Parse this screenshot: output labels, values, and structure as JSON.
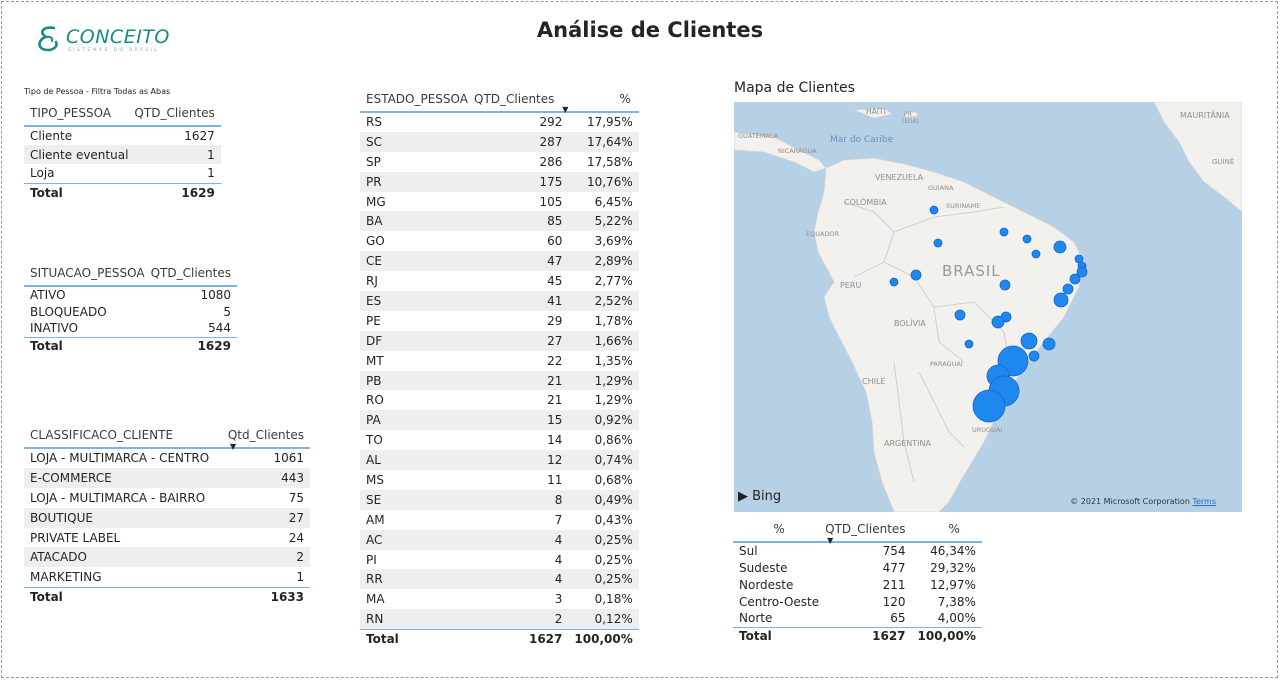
{
  "logo": {
    "wordmark": "CONCEITO",
    "subtitle": "SISTEMAS DO BRASIL"
  },
  "page_title": "Análise de Clientes",
  "tipo_pessoa": {
    "caption": "Tipo de Pessoa - Filtra Todas as Abas",
    "headers": [
      "TIPO_PESSOA",
      "QTD_Clientes"
    ],
    "rows": [
      [
        "Cliente",
        "1627"
      ],
      [
        "Cliente eventual",
        "1"
      ],
      [
        "Loja",
        "1"
      ]
    ],
    "total": [
      "Total",
      "1629"
    ]
  },
  "situacao_pessoa": {
    "headers": [
      "SITUACAO_PESSOA",
      "QTD_Clientes"
    ],
    "rows": [
      [
        "ATIVO",
        "1080"
      ],
      [
        "BLOQUEADO",
        "5"
      ],
      [
        "INATIVO",
        "544"
      ]
    ],
    "total": [
      "Total",
      "1629"
    ]
  },
  "classificacao_cliente": {
    "headers": [
      "CLASSIFICACO_CLIENTE",
      "Qtd_Clientes"
    ],
    "rows": [
      [
        "LOJA - MULTIMARCA - CENTRO",
        "1061"
      ],
      [
        "E-COMMERCE",
        "443"
      ],
      [
        "LOJA - MULTIMARCA - BAIRRO",
        "75"
      ],
      [
        "BOUTIQUE",
        "27"
      ],
      [
        "PRIVATE LABEL",
        "24"
      ],
      [
        "ATACADO",
        "2"
      ],
      [
        "MARKETING",
        "1"
      ]
    ],
    "total": [
      "Total",
      "1633"
    ]
  },
  "estado_pessoa": {
    "headers": [
      "ESTADO_PESSOA",
      "QTD_Clientes",
      "%"
    ],
    "rows": [
      [
        "RS",
        "292",
        "17,95%"
      ],
      [
        "SC",
        "287",
        "17,64%"
      ],
      [
        "SP",
        "286",
        "17,58%"
      ],
      [
        "PR",
        "175",
        "10,76%"
      ],
      [
        "MG",
        "105",
        "6,45%"
      ],
      [
        "BA",
        "85",
        "5,22%"
      ],
      [
        "GO",
        "60",
        "3,69%"
      ],
      [
        "CE",
        "47",
        "2,89%"
      ],
      [
        "RJ",
        "45",
        "2,77%"
      ],
      [
        "ES",
        "41",
        "2,52%"
      ],
      [
        "PE",
        "29",
        "1,78%"
      ],
      [
        "DF",
        "27",
        "1,66%"
      ],
      [
        "MT",
        "22",
        "1,35%"
      ],
      [
        "PB",
        "21",
        "1,29%"
      ],
      [
        "RO",
        "21",
        "1,29%"
      ],
      [
        "PA",
        "15",
        "0,92%"
      ],
      [
        "TO",
        "14",
        "0,86%"
      ],
      [
        "AL",
        "12",
        "0,74%"
      ],
      [
        "MS",
        "11",
        "0,68%"
      ],
      [
        "SE",
        "8",
        "0,49%"
      ],
      [
        "AM",
        "7",
        "0,43%"
      ],
      [
        "AC",
        "4",
        "0,25%"
      ],
      [
        "PI",
        "4",
        "0,25%"
      ],
      [
        "RR",
        "4",
        "0,25%"
      ],
      [
        "MA",
        "3",
        "0,18%"
      ],
      [
        "RN",
        "2",
        "0,12%"
      ]
    ],
    "total": [
      "Total",
      "1627",
      "100,00%"
    ]
  },
  "map": {
    "title": "Mapa de Clientes",
    "labels": {
      "haiti": "HAITI",
      "pr_eua": "PR",
      "pr_eua2": "(EUA)",
      "guatemala": "GUATEMALA",
      "nicaragua": "NICARÁGUA",
      "mar_caribe": "Mar do Caribe",
      "mauritania": "MAURITÂNIA",
      "guine": "GUINÉ",
      "venezuela": "VENEZUELA",
      "guiana": "GUIANA",
      "suriname": "SURINAME",
      "colombia": "COLÔMBIA",
      "equador": "EQUADOR",
      "brasil": "BRASIL",
      "peru": "PERU",
      "bolivia": "BOLÍVIA",
      "paraguai": "PARAGUAI",
      "chile": "CHILE",
      "uruguai": "URUGUAI",
      "argentina": "ARGENTINA"
    },
    "bing": "Bing",
    "copyright": "© 2021 Microsoft Corporation",
    "terms": "Terms",
    "bubble_color": "#1e88f0"
  },
  "regiao": {
    "headers": [
      "%",
      "QTD_Clientes",
      "%"
    ],
    "rows": [
      [
        "Sul",
        "754",
        "46,34%"
      ],
      [
        "Sudeste",
        "477",
        "29,32%"
      ],
      [
        "Nordeste",
        "211",
        "12,97%"
      ],
      [
        "Centro-Oeste",
        "120",
        "7,38%"
      ],
      [
        "Norte",
        "65",
        "4,00%"
      ]
    ],
    "total": [
      "Total",
      "1627",
      "100,00%"
    ]
  }
}
